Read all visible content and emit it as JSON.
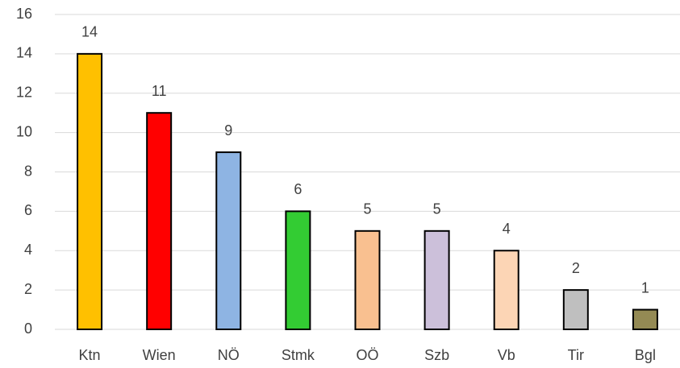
{
  "chart_data": {
    "type": "bar",
    "categories": [
      "Ktn",
      "Wien",
      "NÖ",
      "Stmk",
      "OÖ",
      "Szb",
      "Vb",
      "Tir",
      "Bgl"
    ],
    "values": [
      14,
      11,
      9,
      6,
      5,
      5,
      4,
      2,
      1
    ],
    "colors": [
      "#ffc000",
      "#ff0000",
      "#8eb4e3",
      "#33cc33",
      "#f9c090",
      "#ccc0da",
      "#fcd5b5",
      "#bfbfbf",
      "#948a54"
    ],
    "ylim": [
      0,
      16
    ],
    "yticks": [
      0,
      2,
      4,
      6,
      8,
      10,
      12,
      14,
      16
    ],
    "grid": true,
    "data_labels": true
  }
}
